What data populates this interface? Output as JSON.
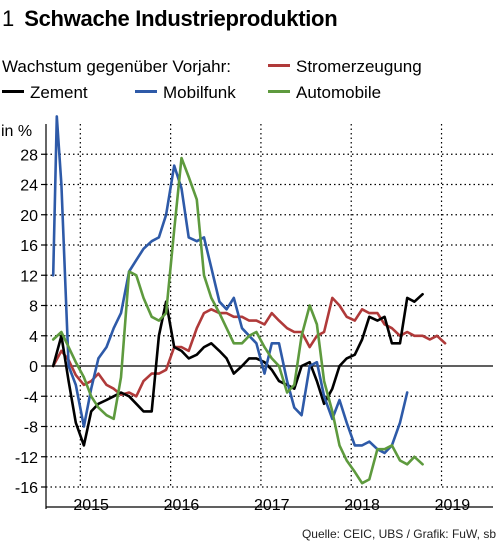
{
  "figure": {
    "number": "1",
    "title": "Schwache Industrieproduktion",
    "subtitle": "Wachstum gegenüber Vorjahr:",
    "source": "Quelle: CEIC, UBS / Grafik: FuW, sb"
  },
  "chart_data": {
    "type": "line",
    "ylabel": "in %",
    "ylim": [
      -16,
      32
    ],
    "yticks": [
      28,
      24,
      20,
      16,
      12,
      8,
      4,
      0,
      -4,
      -8,
      -12,
      -16
    ],
    "x_range": [
      2014.5,
      2019.45
    ],
    "xticks": [
      {
        "label": "2015",
        "x": 2015.0
      },
      {
        "label": "2016",
        "x": 2016.0
      },
      {
        "label": "2017",
        "x": 2017.0
      },
      {
        "label": "2018",
        "x": 2018.0
      },
      {
        "label": "2019",
        "x": 2019.0
      }
    ],
    "vertical_gridlines": [
      2014.88,
      2015.88,
      2016.88,
      2017.88,
      2018.88
    ],
    "legend_position": "top",
    "series": [
      {
        "name": "Stromerzeugung",
        "color": "#b03a3a",
        "points": [
          [
            2014.58,
            0.0
          ],
          [
            2014.67,
            2.0
          ],
          [
            2014.75,
            0.8
          ],
          [
            2014.83,
            -1.2
          ],
          [
            2014.92,
            -2.5
          ],
          [
            2015.0,
            -2.0
          ],
          [
            2015.08,
            -1.0
          ],
          [
            2015.17,
            -2.5
          ],
          [
            2015.25,
            -3.0
          ],
          [
            2015.33,
            -3.8
          ],
          [
            2015.42,
            -3.5
          ],
          [
            2015.5,
            -4.0
          ],
          [
            2015.58,
            -2.0
          ],
          [
            2015.67,
            -1.0
          ],
          [
            2015.75,
            -1.0
          ],
          [
            2015.83,
            -0.5
          ],
          [
            2015.92,
            2.5
          ],
          [
            2016.0,
            2.5
          ],
          [
            2016.08,
            2.0
          ],
          [
            2016.17,
            5.0
          ],
          [
            2016.25,
            7.0
          ],
          [
            2016.33,
            7.5
          ],
          [
            2016.42,
            7.0
          ],
          [
            2016.5,
            7.0
          ],
          [
            2016.58,
            6.5
          ],
          [
            2016.67,
            6.5
          ],
          [
            2016.75,
            6.0
          ],
          [
            2016.83,
            6.0
          ],
          [
            2016.92,
            5.5
          ],
          [
            2017.0,
            7.0
          ],
          [
            2017.08,
            6.0
          ],
          [
            2017.17,
            5.0
          ],
          [
            2017.25,
            4.5
          ],
          [
            2017.33,
            4.5
          ],
          [
            2017.42,
            2.5
          ],
          [
            2017.5,
            4.0
          ],
          [
            2017.58,
            4.5
          ],
          [
            2017.67,
            9.0
          ],
          [
            2017.75,
            8.0
          ],
          [
            2017.83,
            6.5
          ],
          [
            2017.92,
            6.0
          ],
          [
            2018.0,
            7.5
          ],
          [
            2018.08,
            7.0
          ],
          [
            2018.17,
            7.0
          ],
          [
            2018.25,
            5.5
          ],
          [
            2018.33,
            5.0
          ],
          [
            2018.42,
            4.0
          ],
          [
            2018.5,
            4.5
          ],
          [
            2018.58,
            4.0
          ],
          [
            2018.67,
            4.0
          ],
          [
            2018.75,
            3.5
          ],
          [
            2018.83,
            4.0
          ],
          [
            2018.92,
            3.0
          ]
        ]
      },
      {
        "name": "Zement",
        "color": "#000000",
        "points": [
          [
            2014.58,
            0.0
          ],
          [
            2014.67,
            4.0
          ],
          [
            2014.75,
            -2.0
          ],
          [
            2014.83,
            -7.5
          ],
          [
            2014.92,
            -10.5
          ],
          [
            2015.0,
            -6.0
          ],
          [
            2015.08,
            -5.0
          ],
          [
            2015.17,
            -4.5
          ],
          [
            2015.25,
            -4.0
          ],
          [
            2015.33,
            -3.5
          ],
          [
            2015.42,
            -4.0
          ],
          [
            2015.5,
            -5.0
          ],
          [
            2015.58,
            -6.0
          ],
          [
            2015.67,
            -6.0
          ],
          [
            2015.75,
            4.0
          ],
          [
            2015.83,
            8.5
          ],
          [
            2015.92,
            2.5
          ],
          [
            2016.0,
            2.0
          ],
          [
            2016.08,
            1.0
          ],
          [
            2016.17,
            1.5
          ],
          [
            2016.25,
            2.5
          ],
          [
            2016.33,
            3.0
          ],
          [
            2016.42,
            2.0
          ],
          [
            2016.5,
            1.0
          ],
          [
            2016.58,
            -1.0
          ],
          [
            2016.67,
            0.0
          ],
          [
            2016.75,
            1.0
          ],
          [
            2016.83,
            1.0
          ],
          [
            2016.92,
            0.5
          ],
          [
            2017.0,
            -0.5
          ],
          [
            2017.08,
            -2.0
          ],
          [
            2017.17,
            -2.5
          ],
          [
            2017.25,
            -3.0
          ],
          [
            2017.33,
            0.0
          ],
          [
            2017.42,
            0.5
          ],
          [
            2017.5,
            -2.0
          ],
          [
            2017.58,
            -5.0
          ],
          [
            2017.67,
            -3.0
          ],
          [
            2017.75,
            0.0
          ],
          [
            2017.83,
            1.0
          ],
          [
            2017.92,
            1.5
          ],
          [
            2018.0,
            3.5
          ],
          [
            2018.08,
            6.5
          ],
          [
            2018.17,
            6.0
          ],
          [
            2018.25,
            6.5
          ],
          [
            2018.33,
            3.0
          ],
          [
            2018.42,
            3.0
          ],
          [
            2018.5,
            9.0
          ],
          [
            2018.58,
            8.5
          ],
          [
            2018.67,
            9.5
          ]
        ]
      },
      {
        "name": "Mobilfunk",
        "color": "#2e5aa8",
        "points": [
          [
            2014.58,
            12.0
          ],
          [
            2014.62,
            33.0
          ],
          [
            2014.67,
            24.0
          ],
          [
            2014.75,
            0.0
          ],
          [
            2014.83,
            -2.5
          ],
          [
            2014.92,
            -8.0
          ],
          [
            2015.0,
            -3.0
          ],
          [
            2015.08,
            1.0
          ],
          [
            2015.17,
            2.5
          ],
          [
            2015.25,
            5.0
          ],
          [
            2015.33,
            7.0
          ],
          [
            2015.42,
            12.5
          ],
          [
            2015.5,
            14.0
          ],
          [
            2015.58,
            15.5
          ],
          [
            2015.67,
            16.5
          ],
          [
            2015.75,
            17.0
          ],
          [
            2015.83,
            20.0
          ],
          [
            2015.92,
            26.5
          ],
          [
            2016.0,
            23.5
          ],
          [
            2016.08,
            17.0
          ],
          [
            2016.17,
            16.5
          ],
          [
            2016.25,
            17.0
          ],
          [
            2016.33,
            13.0
          ],
          [
            2016.42,
            8.5
          ],
          [
            2016.5,
            7.5
          ],
          [
            2016.58,
            9.0
          ],
          [
            2016.67,
            5.0
          ],
          [
            2016.75,
            4.0
          ],
          [
            2016.83,
            3.0
          ],
          [
            2016.92,
            -1.0
          ],
          [
            2017.0,
            3.0
          ],
          [
            2017.08,
            3.0
          ],
          [
            2017.17,
            -2.0
          ],
          [
            2017.25,
            -5.5
          ],
          [
            2017.33,
            -6.5
          ],
          [
            2017.42,
            0.0
          ],
          [
            2017.5,
            0.5
          ],
          [
            2017.58,
            -4.0
          ],
          [
            2017.67,
            -7.0
          ],
          [
            2017.75,
            -4.5
          ],
          [
            2017.83,
            -7.5
          ],
          [
            2017.92,
            -10.5
          ],
          [
            2018.0,
            -10.5
          ],
          [
            2018.08,
            -10.0
          ],
          [
            2018.17,
            -11.0
          ],
          [
            2018.25,
            -11.5
          ],
          [
            2018.33,
            -10.5
          ],
          [
            2018.42,
            -7.5
          ],
          [
            2018.5,
            -3.5
          ]
        ]
      },
      {
        "name": "Automobile",
        "color": "#5e9a3e",
        "points": [
          [
            2014.58,
            3.5
          ],
          [
            2014.67,
            4.5
          ],
          [
            2014.75,
            2.5
          ],
          [
            2014.83,
            0.5
          ],
          [
            2014.92,
            -1.5
          ],
          [
            2015.0,
            -4.0
          ],
          [
            2015.08,
            -5.5
          ],
          [
            2015.17,
            -6.5
          ],
          [
            2015.25,
            -7.0
          ],
          [
            2015.33,
            -1.5
          ],
          [
            2015.42,
            12.5
          ],
          [
            2015.5,
            12.0
          ],
          [
            2015.58,
            9.0
          ],
          [
            2015.67,
            6.5
          ],
          [
            2015.75,
            6.0
          ],
          [
            2015.83,
            7.0
          ],
          [
            2015.92,
            18.0
          ],
          [
            2016.0,
            27.5
          ],
          [
            2016.08,
            25.0
          ],
          [
            2016.17,
            22.0
          ],
          [
            2016.25,
            12.0
          ],
          [
            2016.33,
            9.0
          ],
          [
            2016.42,
            7.0
          ],
          [
            2016.5,
            5.0
          ],
          [
            2016.58,
            3.0
          ],
          [
            2016.67,
            3.0
          ],
          [
            2016.75,
            4.0
          ],
          [
            2016.83,
            4.5
          ],
          [
            2016.92,
            2.5
          ],
          [
            2017.0,
            1.0
          ],
          [
            2017.08,
            0.0
          ],
          [
            2017.17,
            -3.5
          ],
          [
            2017.25,
            -2.5
          ],
          [
            2017.33,
            4.0
          ],
          [
            2017.42,
            8.0
          ],
          [
            2017.5,
            5.5
          ],
          [
            2017.58,
            -2.0
          ],
          [
            2017.67,
            -6.0
          ],
          [
            2017.75,
            -10.5
          ],
          [
            2017.83,
            -12.5
          ],
          [
            2017.92,
            -14.0
          ],
          [
            2018.0,
            -15.5
          ],
          [
            2018.08,
            -15.0
          ],
          [
            2018.17,
            -11.0
          ],
          [
            2018.25,
            -11.0
          ],
          [
            2018.33,
            -10.5
          ],
          [
            2018.42,
            -12.5
          ],
          [
            2018.5,
            -13.0
          ],
          [
            2018.58,
            -12.0
          ],
          [
            2018.67,
            -13.0
          ]
        ]
      }
    ]
  }
}
